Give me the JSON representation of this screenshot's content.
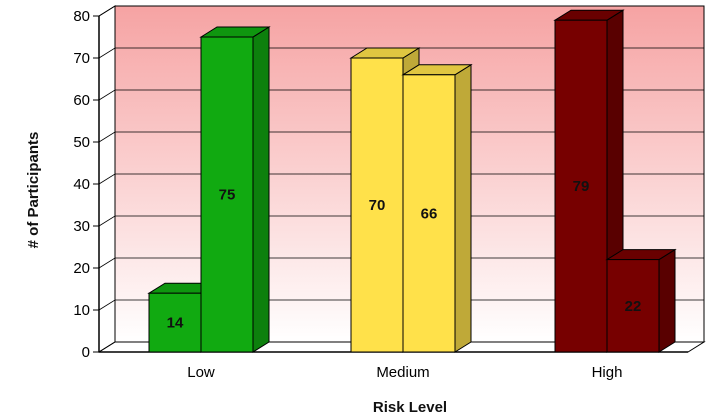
{
  "chart_data": {
    "type": "bar",
    "title": "",
    "xlabel": "Risk Level",
    "ylabel": "# of Participants",
    "categories": [
      "Low",
      "Medium",
      "High"
    ],
    "bars": [
      {
        "category": "Low",
        "value": 14,
        "color": "#11aa11"
      },
      {
        "category": "Low",
        "value": 75,
        "color": "#11aa11"
      },
      {
        "category": "Medium",
        "value": 70,
        "color": "#ffe14a"
      },
      {
        "category": "Medium",
        "value": 66,
        "color": "#ffe14a"
      },
      {
        "category": "High",
        "value": 79,
        "color": "#770000"
      },
      {
        "category": "High",
        "value": 22,
        "color": "#770000"
      }
    ],
    "ylim": [
      0,
      80
    ],
    "yticks": [
      0,
      10,
      20,
      30,
      40,
      50,
      60,
      70,
      80
    ],
    "grid": true,
    "legend": "none",
    "background_gradient": {
      "top": "#f6a3a3",
      "bottom": "#ffffff"
    }
  }
}
